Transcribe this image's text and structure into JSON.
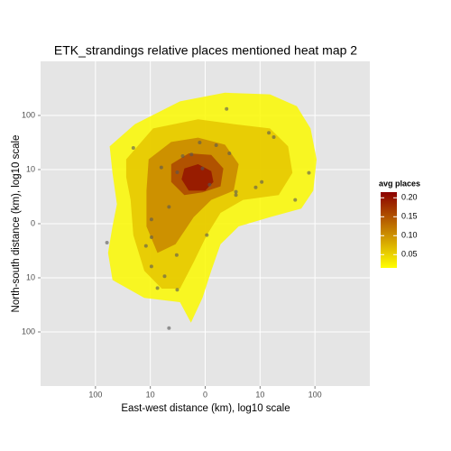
{
  "chart_data": {
    "type": "contour",
    "title": "ETK_strandings relative places mentioned heat map 2",
    "x_label": "East-west distance (km), log10 scale",
    "y_label": "North-south distance (km), log10 scale",
    "xlim": [
      -3,
      3
    ],
    "ylim": [
      -3,
      3
    ],
    "xticks": [
      {
        "value": -2,
        "label": "100"
      },
      {
        "value": -1,
        "label": "10"
      },
      0,
      {
        "value": 1,
        "label": "10"
      },
      {
        "value": 2,
        "label": "100"
      }
    ],
    "yticks": [
      {
        "value": -2,
        "label": "100"
      },
      {
        "value": -1,
        "label": "10"
      },
      0,
      {
        "value": 1,
        "label": "10"
      },
      {
        "value": 2,
        "label": "100"
      }
    ],
    "grid": true,
    "legend": {
      "title": "avg places",
      "position": "right",
      "low_color": "#ffff00",
      "high_color": "#8b0000",
      "colorlim": [
        0.015,
        0.215
      ],
      "ticks": [
        {
          "value": 0.05,
          "label": "0.05"
        },
        {
          "value": 0.1,
          "label": "0.10"
        },
        {
          "value": 0.15,
          "label": "0.15"
        },
        {
          "value": 0.2,
          "label": "0.20"
        }
      ]
    },
    "contours": [
      {
        "level": 0.02,
        "x": [
          -1.74,
          -1.28,
          -0.46,
          0.36,
          1.18,
          1.67,
          1.92,
          2.03,
          1.97,
          1.75,
          1.18,
          0.61,
          0.28,
          0.11,
          -0.05,
          -0.26,
          -0.46,
          -1.11,
          -1.69,
          -1.77,
          -1.69,
          -1.61,
          -1.69
        ],
        "y": [
          1.43,
          1.84,
          2.26,
          2.42,
          2.39,
          2.17,
          1.76,
          1.19,
          0.61,
          0.28,
          0.12,
          -0.05,
          -0.38,
          -0.87,
          -1.37,
          -1.83,
          -1.45,
          -1.37,
          -1.04,
          -0.54,
          -0.05,
          0.36,
          0.94
        ]
      },
      {
        "level": 0.06,
        "x": [
          -1.44,
          -0.95,
          -0.13,
          0.52,
          1.18,
          1.51,
          1.59,
          1.34,
          0.69,
          0.28,
          0.03,
          -0.21,
          -0.46,
          -0.79,
          -1.11,
          -1.31,
          -1.36,
          -1.44
        ],
        "y": [
          1.19,
          1.76,
          1.93,
          1.84,
          1.76,
          1.43,
          0.94,
          0.53,
          0.44,
          0.2,
          -0.21,
          -0.71,
          -1.2,
          -1.2,
          -0.87,
          -0.21,
          0.44,
          0.86
        ]
      },
      {
        "level": 0.11,
        "x": [
          -1.03,
          -0.62,
          -0.13,
          0.36,
          0.61,
          0.52,
          0.11,
          -0.21,
          -0.54,
          -0.87,
          -1.07,
          -1.07
        ],
        "y": [
          1.19,
          1.51,
          1.59,
          1.46,
          1.1,
          0.61,
          0.44,
          0.12,
          -0.38,
          -0.54,
          -0.05,
          0.61
        ]
      },
      {
        "level": 0.16,
        "x": [
          -0.62,
          -0.3,
          0.11,
          0.33,
          0.28,
          -0.05,
          -0.38,
          -0.62
        ],
        "y": [
          1.1,
          1.3,
          1.27,
          1.02,
          0.69,
          0.58,
          0.53,
          0.77
        ]
      },
      {
        "level": 0.2,
        "x": [
          -0.38,
          -0.13,
          0.11,
          0.15,
          0.0,
          -0.3,
          -0.43
        ],
        "y": [
          1.02,
          1.1,
          0.97,
          0.77,
          0.61,
          0.61,
          0.82
        ]
      }
    ],
    "points": {
      "color": "#555555",
      "x": [
        -1.31,
        -1.79,
        -0.98,
        -1.08,
        -0.98,
        -0.98,
        -0.87,
        -0.74,
        -0.51,
        -0.66,
        -0.52,
        -0.66,
        -0.8,
        -0.51,
        -0.41,
        -0.25,
        -0.1,
        0.2,
        0.44,
        0.39,
        0.92,
        1.03,
        1.16,
        1.25,
        1.89,
        1.64,
        0.56,
        0.56,
        0.03,
        -0.05,
        0.08
      ],
      "y": [
        1.4,
        -0.35,
        0.08,
        -0.41,
        -0.25,
        -0.79,
        -1.19,
        -0.97,
        -1.22,
        -1.93,
        -0.58,
        0.31,
        1.04,
        0.95,
        1.25,
        1.28,
        1.5,
        1.45,
        1.3,
        2.12,
        0.67,
        0.77,
        1.68,
        1.6,
        0.94,
        0.44,
        0.59,
        0.53,
        -0.21,
        1.02,
        0.72
      ]
    }
  }
}
